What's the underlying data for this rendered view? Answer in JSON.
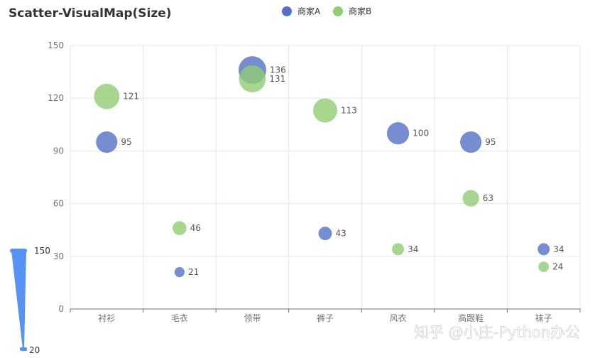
{
  "chart_data": {
    "type": "scatter",
    "title": "Scatter-VisualMap(Size)",
    "categories": [
      "衬衫",
      "毛衣",
      "领带",
      "裤子",
      "风衣",
      "高跟鞋",
      "袜子"
    ],
    "ylim": [
      0,
      150
    ],
    "yticks": [
      0,
      30,
      60,
      90,
      120,
      150
    ],
    "grid": true,
    "legend_position": "top",
    "series": [
      {
        "name": "商家A",
        "color": "#5470c6",
        "values": [
          95,
          21,
          136,
          43,
          100,
          95,
          34
        ]
      },
      {
        "name": "商家B",
        "color": "#91cc75",
        "values": [
          121,
          46,
          131,
          113,
          34,
          63,
          24
        ]
      }
    ],
    "visual_map": {
      "dimension": "size",
      "min": 20,
      "max": 150,
      "min_label": "20",
      "max_label": "150",
      "color": "#5793f3"
    }
  },
  "watermark": "知乎 @小庄-Python办公"
}
